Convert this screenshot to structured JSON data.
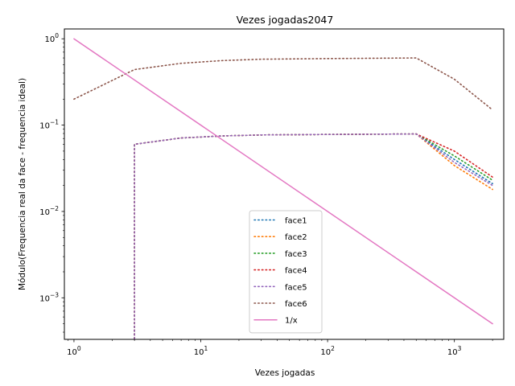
{
  "chart_data": {
    "type": "line",
    "title": "Vezes jogadas2047",
    "xlabel": "Vezes jogadas",
    "ylabel": "Módulo(Frequencia real da face - frequencia ideal)",
    "xscale": "log",
    "yscale": "log",
    "xlim": [
      0.84,
      2450
    ],
    "ylim": [
      0.00033,
      1.3
    ],
    "grid": false,
    "legend_position": "lower center",
    "x_ticks": [
      {
        "exp": "0",
        "value": 1
      },
      {
        "exp": "1",
        "value": 10
      },
      {
        "exp": "2",
        "value": 100
      },
      {
        "exp": "3",
        "value": 1000
      }
    ],
    "y_ticks": [
      {
        "exp": "0",
        "value": 1
      },
      {
        "exp": "−1",
        "value": 0.1
      },
      {
        "exp": "−2",
        "value": 0.01
      },
      {
        "exp": "−3",
        "value": 0.001
      }
    ],
    "series": [
      {
        "name": "face1",
        "color": "#1f77b4",
        "style": "dotted",
        "x": [
          3,
          3,
          7,
          15,
          30,
          100,
          500,
          1000,
          2000
        ],
        "y": [
          0.0001,
          0.06,
          0.071,
          0.075,
          0.077,
          0.078,
          0.079,
          0.04,
          0.021
        ]
      },
      {
        "name": "face2",
        "color": "#ff7f0e",
        "style": "dotted",
        "x": [
          3,
          3,
          7,
          15,
          30,
          100,
          500,
          1000,
          2000
        ],
        "y": [
          0.0001,
          0.06,
          0.071,
          0.075,
          0.077,
          0.078,
          0.079,
          0.034,
          0.018
        ]
      },
      {
        "name": "face3",
        "color": "#2ca02c",
        "style": "dotted",
        "x": [
          3,
          3,
          7,
          15,
          30,
          100,
          500,
          1000,
          2000
        ],
        "y": [
          0.0001,
          0.06,
          0.071,
          0.075,
          0.077,
          0.078,
          0.079,
          0.044,
          0.023
        ]
      },
      {
        "name": "face4",
        "color": "#d62728",
        "style": "dotted",
        "x": [
          3,
          3,
          7,
          15,
          30,
          100,
          500,
          1000,
          2000
        ],
        "y": [
          0.0001,
          0.06,
          0.071,
          0.075,
          0.077,
          0.078,
          0.079,
          0.05,
          0.025
        ]
      },
      {
        "name": "face5",
        "color": "#9467bd",
        "style": "dotted",
        "x": [
          3,
          3,
          7,
          15,
          30,
          100,
          500,
          1000,
          2000
        ],
        "y": [
          0.0001,
          0.06,
          0.071,
          0.075,
          0.077,
          0.078,
          0.079,
          0.037,
          0.02
        ]
      },
      {
        "name": "face6",
        "color": "#8c564b",
        "style": "dotted",
        "x": [
          1,
          3,
          7,
          15,
          30,
          100,
          500,
          1000,
          2000
        ],
        "y": [
          0.2,
          0.44,
          0.52,
          0.56,
          0.58,
          0.59,
          0.6,
          0.34,
          0.15
        ]
      },
      {
        "name": "1/x",
        "color": "#e377c2",
        "style": "solid",
        "x": [
          1,
          2000
        ],
        "y": [
          1,
          0.0005
        ]
      }
    ]
  }
}
